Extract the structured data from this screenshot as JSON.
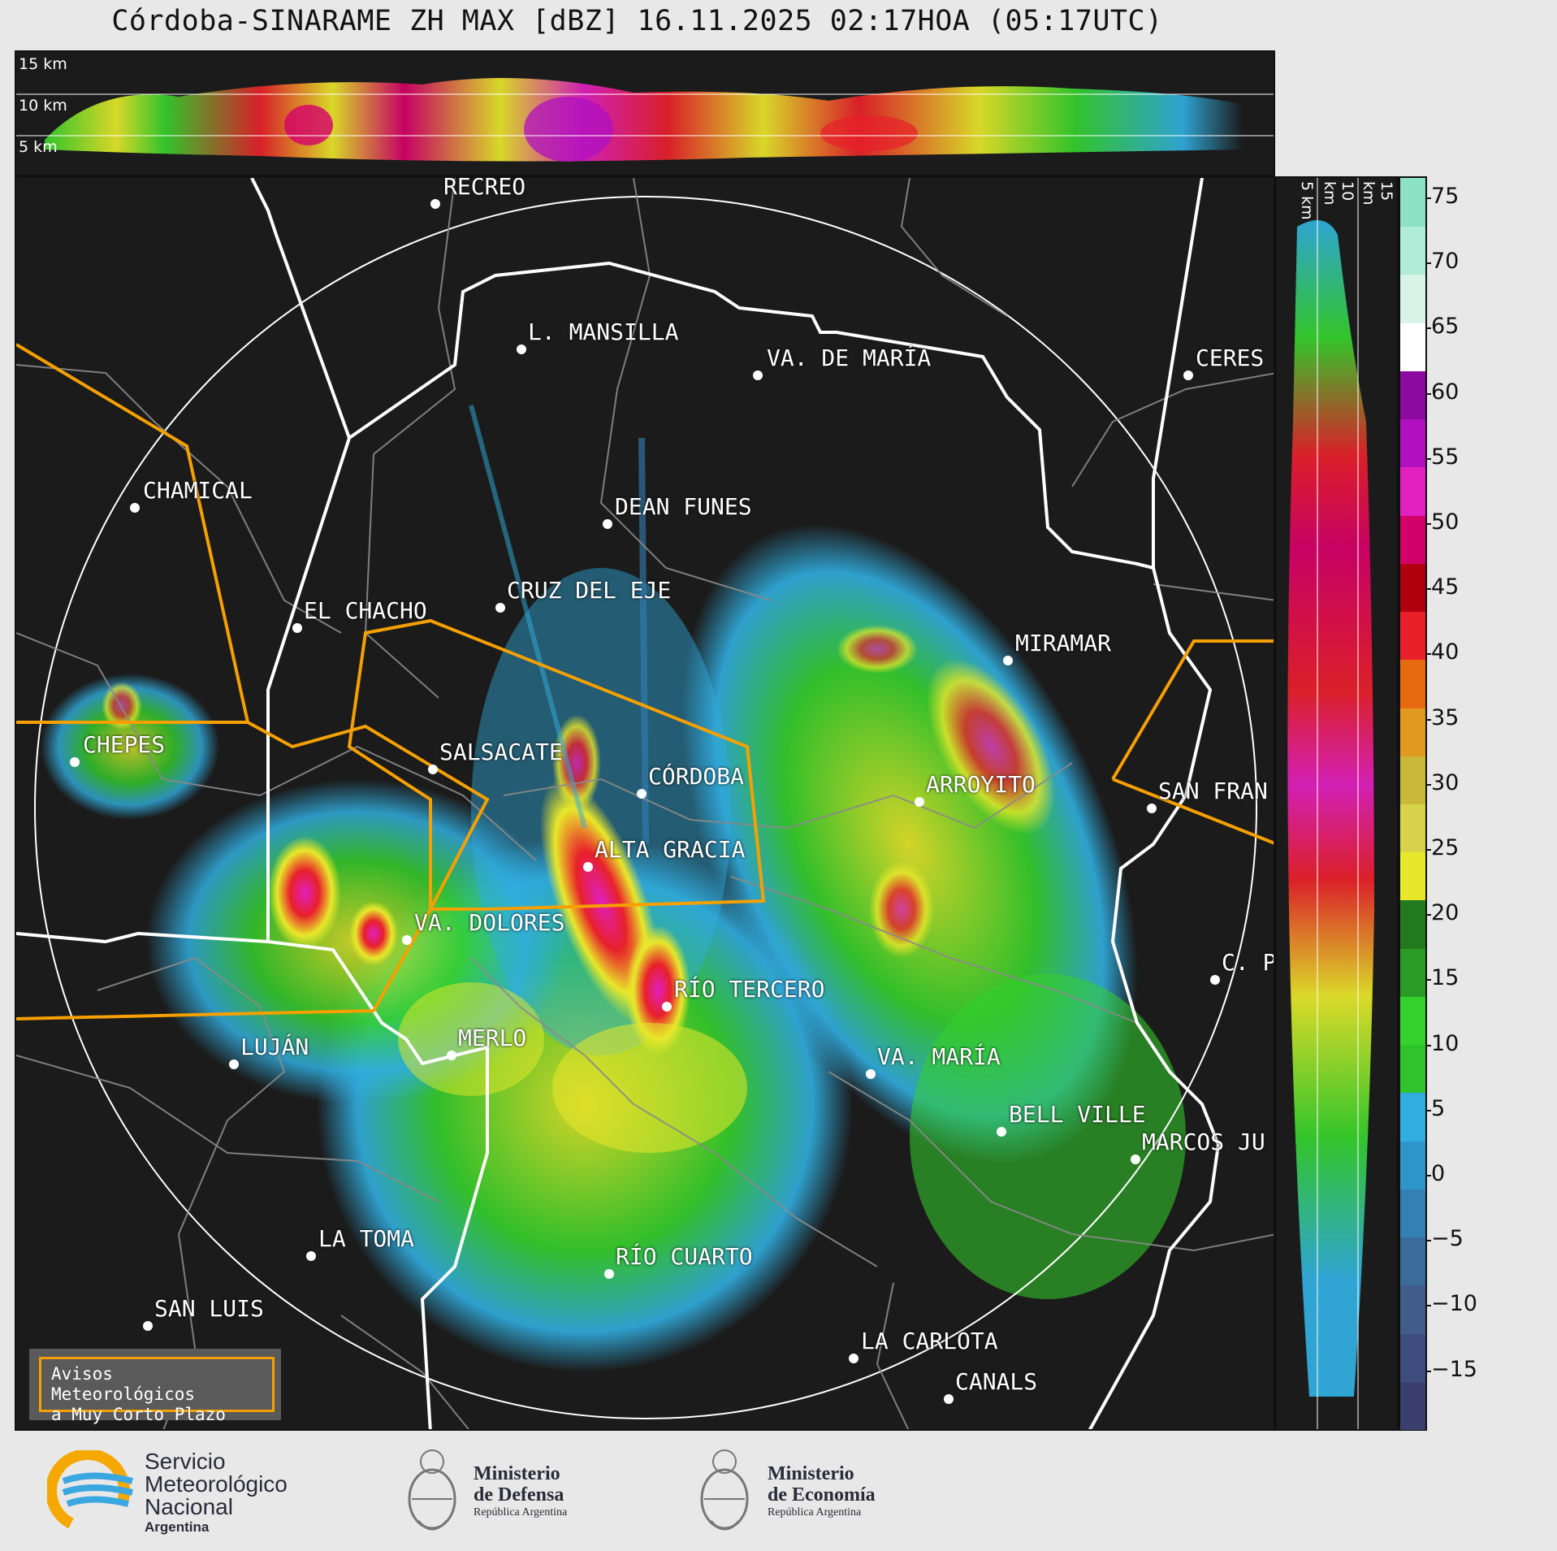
{
  "title": "Córdoba-SINARAME ZH MAX [dBZ] 16.11.2025 02:17HOA (05:17UTC)",
  "top_panel": {
    "km_labels": [
      "15 km",
      "10 km",
      "5 km"
    ]
  },
  "side_panel": {
    "km_labels": [
      "5 km",
      "10 km",
      "15 km"
    ]
  },
  "cities": [
    {
      "name": "RECREO"
    },
    {
      "name": "L. MANSILLA"
    },
    {
      "name": "VA. DE MARÍA"
    },
    {
      "name": "CERES"
    },
    {
      "name": "CHAMICAL"
    },
    {
      "name": "DEAN FUNES"
    },
    {
      "name": "CRUZ DEL EJE"
    },
    {
      "name": "EL CHACHO"
    },
    {
      "name": "MIRAMAR"
    },
    {
      "name": "CHEPES"
    },
    {
      "name": "SALSACATE"
    },
    {
      "name": "CÓRDOBA"
    },
    {
      "name": "ARROYITO"
    },
    {
      "name": "SAN FRAN"
    },
    {
      "name": "ALTA GRACIA"
    },
    {
      "name": "VA. DOLORES"
    },
    {
      "name": "C. P"
    },
    {
      "name": "RÍO TERCERO"
    },
    {
      "name": "LUJÁN"
    },
    {
      "name": "MERLO"
    },
    {
      "name": "VA. MARÍA"
    },
    {
      "name": "BELL VILLE"
    },
    {
      "name": "MARCOS JU"
    },
    {
      "name": "LA TOMA"
    },
    {
      "name": "RÍO CUARTO"
    },
    {
      "name": "SAN LUIS"
    },
    {
      "name": "LA CARLOTA"
    },
    {
      "name": "CANALS"
    }
  ],
  "colorbar": {
    "unit": "dBZ",
    "ticks": [
      "75",
      "70",
      "65",
      "60",
      "55",
      "50",
      "45",
      "40",
      "35",
      "30",
      "25",
      "20",
      "15",
      "10",
      "5",
      "0",
      "−5",
      "−10",
      "−15"
    ],
    "colors": [
      "#3a3f6e",
      "#3f4d7e",
      "#3f5c8a",
      "#3b6c99",
      "#3480b4",
      "#2e95c8",
      "#31aee0",
      "#2fc42b",
      "#35d12c",
      "#2a9c25",
      "#237a1e",
      "#e8e82a",
      "#d8d24a",
      "#c9b83a",
      "#e09a20",
      "#e86a10",
      "#e8202a",
      "#b00010",
      "#d4006a",
      "#e020c0",
      "#b010c0",
      "#8c0a9e",
      "#ffffff",
      "#d8f4e8",
      "#b0ecd8",
      "#8de2c6"
    ]
  },
  "avisos": {
    "line1": "Avisos Meteorológicos",
    "line2": "a Muy Corto Plazo"
  },
  "footer": {
    "smn": {
      "line1": "Servicio",
      "line2": "Meteorológico",
      "line3": "Nacional",
      "line4": "Argentina"
    },
    "defensa": {
      "line1": "Ministerio",
      "line2": "de Defensa",
      "line3": "República Argentina"
    },
    "economia": {
      "line1": "Ministerio",
      "line2": "de Economía",
      "line3": "República Argentina"
    }
  }
}
